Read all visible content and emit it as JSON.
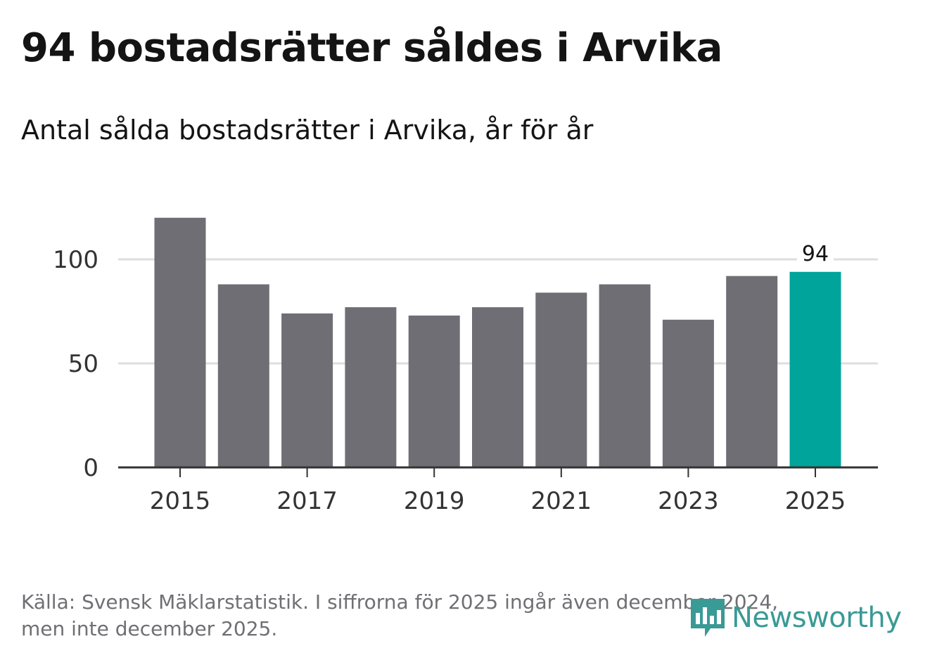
{
  "title": "94 bostadsrätter såldes i Arvika",
  "subtitle": "Antal sålda bostadsrätter i Arvika, år för år",
  "footer": {
    "line1": "Källa: Svensk Mäklarstatistik. I siffrorna för 2025 ingår även december 2024,",
    "line2": "men inte december 2025."
  },
  "brand": {
    "name": "Newsworthy",
    "icon": "newsworthy-logo-icon"
  },
  "colors": {
    "bar": "#6f6e74",
    "highlight": "#00a49a",
    "axis": "#333333",
    "grid": "#dedede",
    "brand": "#3a9a96"
  },
  "chart_data": {
    "type": "bar",
    "title": "Antal sålda bostadsrätter i Arvika, år för år",
    "categories": [
      "2015",
      "2016",
      "2017",
      "2018",
      "2019",
      "2020",
      "2021",
      "2022",
      "2023",
      "2024",
      "2025"
    ],
    "values": [
      120,
      88,
      74,
      77,
      73,
      77,
      84,
      88,
      71,
      92,
      94
    ],
    "highlight_index": 10,
    "data_label": {
      "index": 10,
      "text": "94"
    },
    "ylim": [
      0,
      125
    ],
    "yticks": [
      0,
      50,
      100
    ],
    "xticks": [
      "2015",
      "2017",
      "2019",
      "2021",
      "2023",
      "2025"
    ],
    "xlabel": "",
    "ylabel": "",
    "grid": true
  }
}
